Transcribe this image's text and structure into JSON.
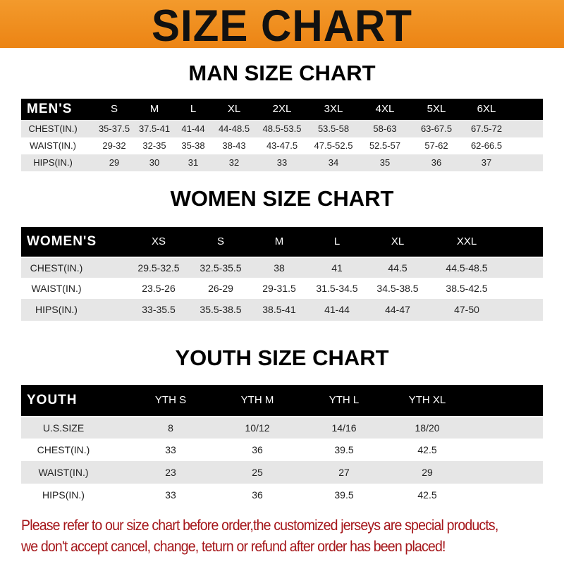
{
  "banner": {
    "title": "SIZE CHART",
    "color": "#ec8414"
  },
  "men": {
    "title": "MAN SIZE CHART",
    "header": [
      "MEN'S",
      "S",
      "M",
      "L",
      "XL",
      "2XL",
      "3XL",
      "4XL",
      "5XL",
      "6XL"
    ],
    "rows": [
      [
        "CHEST(IN.)",
        "35-37.5",
        "37.5-41",
        "41-44",
        "44-48.5",
        "48.5-53.5",
        "53.5-58",
        "58-63",
        "63-67.5",
        "67.5-72"
      ],
      [
        "WAIST(IN.)",
        "29-32",
        "32-35",
        "35-38",
        "38-43",
        "43-47.5",
        "47.5-52.5",
        "52.5-57",
        "57-62",
        "62-66.5"
      ],
      [
        "HIPS(IN.)",
        "29",
        "30",
        "31",
        "32",
        "33",
        "34",
        "35",
        "36",
        "37"
      ]
    ]
  },
  "women": {
    "title": "WOMEN SIZE CHART",
    "header": [
      "WOMEN'S",
      "XS",
      "S",
      "M",
      "L",
      "XL",
      "XXL"
    ],
    "rows": [
      [
        "CHEST(IN.)",
        "29.5-32.5",
        "32.5-35.5",
        "38",
        "41",
        "44.5",
        "44.5-48.5"
      ],
      [
        "WAIST(IN.)",
        "23.5-26",
        "26-29",
        "29-31.5",
        "31.5-34.5",
        "34.5-38.5",
        "38.5-42.5"
      ],
      [
        "HIPS(IN.)",
        "33-35.5",
        "35.5-38.5",
        "38.5-41",
        "41-44",
        "44-47",
        "47-50"
      ]
    ]
  },
  "youth": {
    "title": "YOUTH SIZE CHART",
    "header": [
      "YOUTH",
      "YTH S",
      "YTH M",
      "YTH L",
      "YTH XL"
    ],
    "rows": [
      [
        "U.S.SIZE",
        "8",
        "10/12",
        "14/16",
        "18/20"
      ],
      [
        "CHEST(IN.)",
        "33",
        "36",
        "39.5",
        "42.5"
      ],
      [
        "WAIST(IN.)",
        "23",
        "25",
        "27",
        "29"
      ],
      [
        "HIPS(IN.)",
        "33",
        "36",
        "39.5",
        "42.5"
      ]
    ]
  },
  "footer": {
    "line1": "Please refer to our size chart before order,the customized jerseys are special products,",
    "line2": "we don't accept cancel, change, teturn or refund after order has been placed!",
    "color": "#a5161a"
  }
}
